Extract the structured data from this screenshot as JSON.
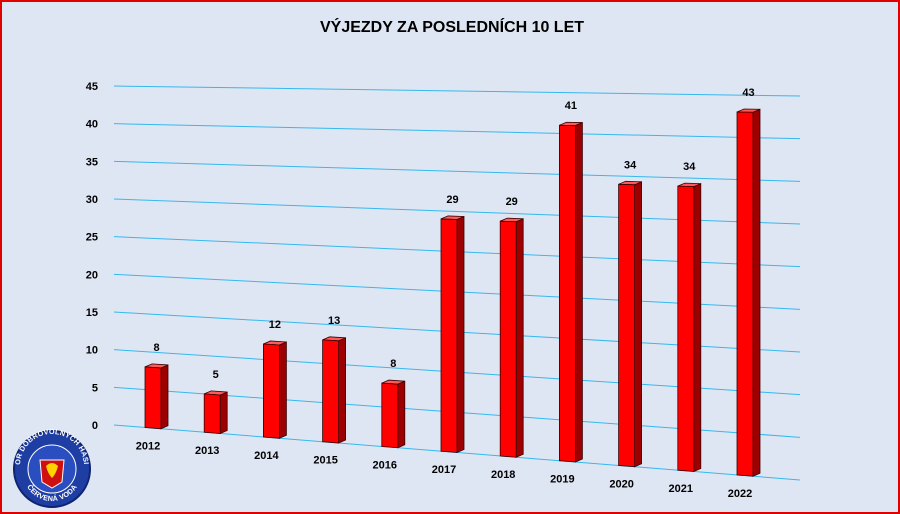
{
  "chart_data": {
    "type": "bar",
    "title": "VÝJEZDY ZA POSLEDNÍCH 10 LET",
    "categories": [
      "2012",
      "2013",
      "2014",
      "2015",
      "2016",
      "2017",
      "2018",
      "2019",
      "2020",
      "2021",
      "2022"
    ],
    "values": [
      8,
      5,
      12,
      13,
      8,
      29,
      29,
      41,
      34,
      34,
      43
    ],
    "yticks": [
      "0",
      "5",
      "10",
      "15",
      "20",
      "25",
      "30",
      "35",
      "40",
      "45"
    ],
    "ylim": [
      0,
      45
    ],
    "grid": true,
    "legend": "none",
    "colors": {
      "bar": "#ff0000",
      "bar_side": "#9c0000",
      "bar_top": "#ff5a5a",
      "grid": "#35b8ee",
      "background": "#dfe6f3",
      "frame": "#e00000"
    }
  },
  "logo": {
    "top_text": "SBOR DOBROVOLNÝCH HASIČŮ",
    "bottom_text": "ČERVENÁ VODA"
  }
}
